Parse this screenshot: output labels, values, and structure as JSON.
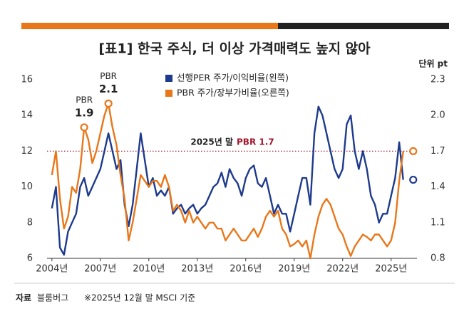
{
  "chart_data": {
    "type": "line",
    "title": "[표1] 한국 주식, 더 이상 가격매력도 높지 않아",
    "unit_label": "단위 pt",
    "source_label": "자료",
    "source": "블룸버그",
    "note": "※2025년 12월 말 MSCI 기준",
    "x": [
      2004.0,
      2004.25,
      2004.5,
      2004.75,
      2005.0,
      2005.25,
      2005.5,
      2005.75,
      2006.0,
      2006.25,
      2006.5,
      2006.75,
      2007.0,
      2007.25,
      2007.5,
      2007.75,
      2008.0,
      2008.25,
      2008.5,
      2008.75,
      2009.0,
      2009.25,
      2009.5,
      2009.75,
      2010.0,
      2010.25,
      2010.5,
      2010.75,
      2011.0,
      2011.25,
      2011.5,
      2011.75,
      2012.0,
      2012.25,
      2012.5,
      2012.75,
      2013.0,
      2013.25,
      2013.5,
      2013.75,
      2014.0,
      2014.25,
      2014.5,
      2014.75,
      2015.0,
      2015.25,
      2015.5,
      2015.75,
      2016.0,
      2016.25,
      2016.5,
      2016.75,
      2017.0,
      2017.25,
      2017.5,
      2017.75,
      2018.0,
      2018.25,
      2018.5,
      2018.75,
      2019.0,
      2019.25,
      2019.5,
      2019.75,
      2020.0,
      2020.25,
      2020.5,
      2020.75,
      2021.0,
      2021.25,
      2021.5,
      2021.75,
      2022.0,
      2022.25,
      2022.5,
      2022.75,
      2023.0,
      2023.25,
      2023.5,
      2023.75,
      2024.0,
      2024.25,
      2024.5,
      2024.75,
      2025.0,
      2025.25,
      2025.5,
      2025.75
    ],
    "series": [
      {
        "name": "선행PER 주가/이익비율(왼쪽)",
        "color": "#1d3a8c",
        "axis": "y",
        "values": [
          8.8,
          10,
          6.6,
          6.2,
          7.5,
          8,
          8.5,
          10,
          10.5,
          9.5,
          10,
          10.5,
          11,
          12,
          13,
          12,
          11,
          11.5,
          9,
          7.8,
          9,
          11,
          13,
          11.5,
          10,
          10.5,
          9.5,
          9.8,
          9.5,
          10,
          8.5,
          8.8,
          9,
          8.5,
          8.8,
          9,
          8.5,
          8.8,
          9,
          9.5,
          10,
          10.2,
          10.8,
          10,
          11,
          10.5,
          10.2,
          9.5,
          10.5,
          11,
          11.2,
          10.2,
          10,
          10.5,
          9.5,
          8.5,
          9,
          8.5,
          8.5,
          7.5,
          8.5,
          9.5,
          10.5,
          10.5,
          9,
          13,
          14.5,
          14,
          13,
          12,
          11,
          10.5,
          11,
          13.5,
          14,
          12,
          11,
          12,
          11,
          9.5,
          9,
          8,
          8.5,
          8.5,
          9.5,
          10.5,
          12.5,
          10.4
        ]
      },
      {
        "name": "PBR 주가/장부가비율(오른쪽)",
        "color": "#e8771a",
        "axis": "y2",
        "values": [
          1.5,
          1.7,
          1.3,
          1.05,
          1.15,
          1.4,
          1.35,
          1.55,
          1.9,
          1.8,
          1.6,
          1.7,
          1.85,
          2.0,
          2.1,
          1.9,
          1.75,
          1.5,
          1.3,
          0.95,
          1.1,
          1.3,
          1.5,
          1.45,
          1.4,
          1.45,
          1.45,
          1.4,
          1.5,
          1.4,
          1.2,
          1.25,
          1.2,
          1.1,
          1.2,
          1.1,
          1.15,
          1.1,
          1.05,
          1.1,
          1.1,
          1.05,
          1.05,
          0.95,
          1.0,
          1.05,
          1.0,
          0.95,
          0.95,
          1.0,
          1.05,
          0.98,
          1.05,
          1.15,
          1.2,
          1.15,
          1.2,
          1.05,
          1.0,
          0.9,
          0.92,
          0.95,
          0.9,
          0.95,
          0.8,
          1.0,
          1.15,
          1.25,
          1.3,
          1.25,
          1.15,
          1.05,
          1.0,
          0.9,
          0.82,
          0.9,
          0.95,
          1.0,
          0.98,
          0.95,
          1.0,
          1.0,
          0.95,
          0.9,
          0.95,
          1.1,
          1.45,
          1.7
        ]
      }
    ],
    "xlim": [
      2003.7,
      2026.6
    ],
    "xticks": [
      {
        "value": 2004,
        "label": "2004년"
      },
      {
        "value": 2007,
        "label": "2007년"
      },
      {
        "value": 2010,
        "label": "2010년"
      },
      {
        "value": 2013,
        "label": "2013년"
      },
      {
        "value": 2016,
        "label": "2016년"
      },
      {
        "value": 2019,
        "label": "2019년"
      },
      {
        "value": 2022,
        "label": "2022년"
      },
      {
        "value": 2025,
        "label": "2025년"
      }
    ],
    "ylim": [
      6,
      16
    ],
    "yticks": [
      6,
      8,
      10,
      12,
      14,
      16
    ],
    "y2lim": [
      0.8,
      2.3
    ],
    "y2ticks": [
      0.8,
      1.1,
      1.4,
      1.7,
      {
        "value": 2,
        "label": "2.0"
      },
      2.3
    ],
    "annotations": [
      {
        "text": "PBR",
        "x": 2006.0,
        "value": 1.9
      },
      {
        "text": "PBR",
        "x": 2007.5,
        "value": 2.1
      }
    ],
    "reference_line": {
      "value": 1.7,
      "axis": "y2",
      "label": "2025년 말",
      "highlight": "PBR 1.7",
      "color": "#a3162b"
    }
  }
}
